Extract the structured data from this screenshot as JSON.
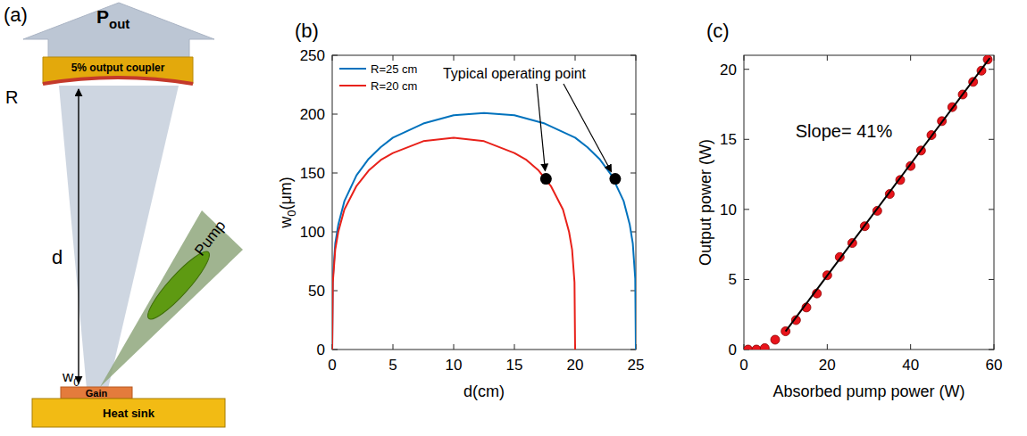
{
  "diagram": {
    "panel": "(a)",
    "output": {
      "main": "P",
      "sub": "out"
    },
    "coupler": "5% output coupler",
    "mirror_label": "R",
    "distance_label": "d",
    "waist": {
      "main": "w",
      "sub": "0"
    },
    "pump": "Pump",
    "gain": "Gain",
    "heat_sink": "Heat sink"
  },
  "chart_data": [
    {
      "type": "line",
      "title": "(b)",
      "x_label": "d(cm)",
      "y_label": {
        "main": "w",
        "sub": "0",
        "tail": "(μm)"
      },
      "xlim": [
        0,
        25
      ],
      "ylim": [
        0,
        250
      ],
      "xticks": [
        0,
        5,
        10,
        15,
        20,
        25
      ],
      "yticks": [
        0,
        50,
        100,
        150,
        200,
        250
      ],
      "legend": "upper left",
      "series": [
        {
          "name": "R=25 cm",
          "color": "#0072bd",
          "line_style": "solid",
          "x": [
            0,
            0.05,
            0.25,
            0.5,
            1,
            2,
            3,
            4,
            5,
            7.5,
            10,
            12.5,
            15,
            17.5,
            20,
            21,
            22,
            23,
            24,
            24.5,
            24.75,
            24.95,
            25
          ],
          "values": [
            0,
            60,
            90,
            106,
            126,
            148,
            162,
            172,
            180,
            192,
            199,
            201,
            199,
            192,
            180,
            172,
            162,
            148,
            126,
            106,
            90,
            60,
            0
          ]
        },
        {
          "name": "R=20 cm",
          "color": "#e8211a",
          "line_style": "solid",
          "x": [
            0,
            0.05,
            0.25,
            0.5,
            1,
            2,
            3,
            4,
            5,
            7.5,
            10,
            12.5,
            15,
            16,
            17,
            18,
            19,
            19.5,
            19.75,
            19.95,
            20
          ],
          "values": [
            0,
            57,
            85,
            100,
            119,
            139,
            152,
            161,
            167,
            177,
            180,
            177,
            167,
            161,
            152,
            139,
            119,
            100,
            85,
            57,
            0
          ]
        }
      ],
      "annotations": [
        {
          "text": "Typical operating point",
          "points": [
            {
              "x": 17.6,
              "y": 145
            },
            {
              "x": 23.3,
              "y": 145
            }
          ]
        }
      ]
    },
    {
      "type": "scatter",
      "title": "(c)",
      "x_label": "Absorbed pump power (W)",
      "y_label": "Output power (W)",
      "xlim": [
        0,
        60
      ],
      "ylim": [
        0,
        21
      ],
      "xticks": [
        0,
        20,
        40,
        60
      ],
      "yticks": [
        0,
        5,
        10,
        15,
        20
      ],
      "series": [
        {
          "type": "scatter",
          "color": "#e8141b",
          "marker": "circle",
          "x": [
            1,
            3,
            5,
            7.5,
            10,
            12.5,
            15,
            17.5,
            20,
            23,
            26,
            29,
            32,
            35,
            37.5,
            40,
            42.5,
            45,
            47.5,
            50,
            52.5,
            55,
            57,
            58.5
          ],
          "values": [
            0,
            0,
            0.1,
            0.7,
            1.3,
            2.1,
            3,
            4,
            5.3,
            6.6,
            7.6,
            8.8,
            9.9,
            11.1,
            12.1,
            13.1,
            14.2,
            15.3,
            16.3,
            17.3,
            18.2,
            19.1,
            19.9,
            20.7
          ]
        },
        {
          "type": "line",
          "color": "#000000",
          "line_style": "solid",
          "x": [
            10,
            59
          ],
          "values": [
            1.3,
            20.8
          ]
        }
      ],
      "annotations": [
        {
          "text": "Slope= 41%"
        }
      ]
    }
  ]
}
